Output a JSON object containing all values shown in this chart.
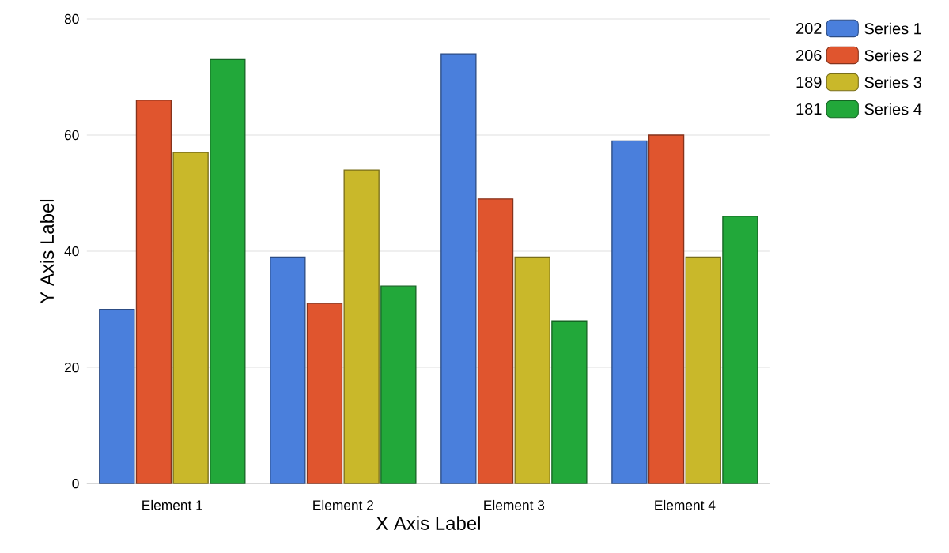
{
  "chart_data": {
    "type": "bar",
    "xlabel": "X Axis Label",
    "ylabel": "Y Axis Label",
    "categories": [
      "Element 1",
      "Element 2",
      "Element 3",
      "Element 4"
    ],
    "series": [
      {
        "name": "Series 1",
        "color": "#4a7fdc",
        "values": [
          30,
          39,
          74,
          59
        ]
      },
      {
        "name": "Series 2",
        "color": "#e0552e",
        "values": [
          66,
          31,
          49,
          60
        ]
      },
      {
        "name": "Series 3",
        "color": "#c9b82a",
        "values": [
          57,
          54,
          39,
          39
        ]
      },
      {
        "name": "Series 4",
        "color": "#22a83a",
        "values": [
          73,
          34,
          28,
          46
        ]
      }
    ],
    "annotations": [
      "202",
      "206",
      "189",
      "181"
    ],
    "ylim": [
      0,
      80
    ],
    "yticks": [
      0,
      20,
      40,
      60,
      80
    ],
    "grid": "y",
    "legend": "top right"
  }
}
